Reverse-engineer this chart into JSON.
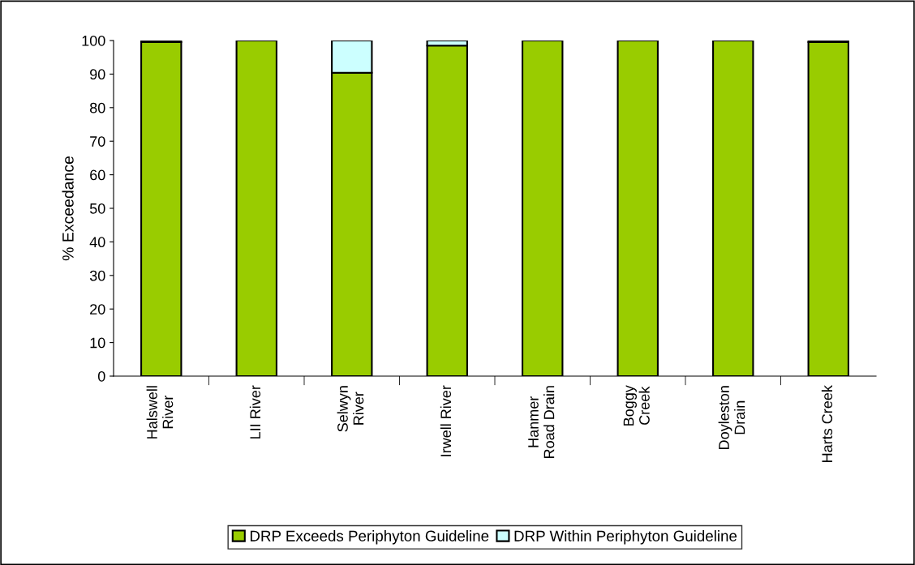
{
  "chart_data": {
    "type": "bar",
    "stacked": true,
    "ylabel": "% Exceedance",
    "categories": [
      "Halswell\nRiver",
      "LII River",
      "Selwyn\nRiver",
      "Irwell River",
      "Hanmer\nRoad Drain",
      "Boggy\nCreek",
      "Doyleston\nDrain",
      "Harts Creek"
    ],
    "series": [
      {
        "name": "DRP Exceeds Periphyton Guideline",
        "color": "#99cc00",
        "values": [
          99.5,
          100,
          90.4,
          98.5,
          100,
          100,
          100,
          99.5
        ]
      },
      {
        "name": "DRP Within Periphyton Guideline",
        "color": "#ccffff",
        "values": [
          0.5,
          null,
          9.6,
          1.5,
          null,
          null,
          null,
          0.5
        ]
      }
    ],
    "ylim": [
      0,
      100
    ],
    "yticks": [
      0,
      10,
      20,
      30,
      40,
      50,
      60,
      70,
      80,
      90,
      100
    ],
    "grid": false,
    "legend": "bottom"
  }
}
